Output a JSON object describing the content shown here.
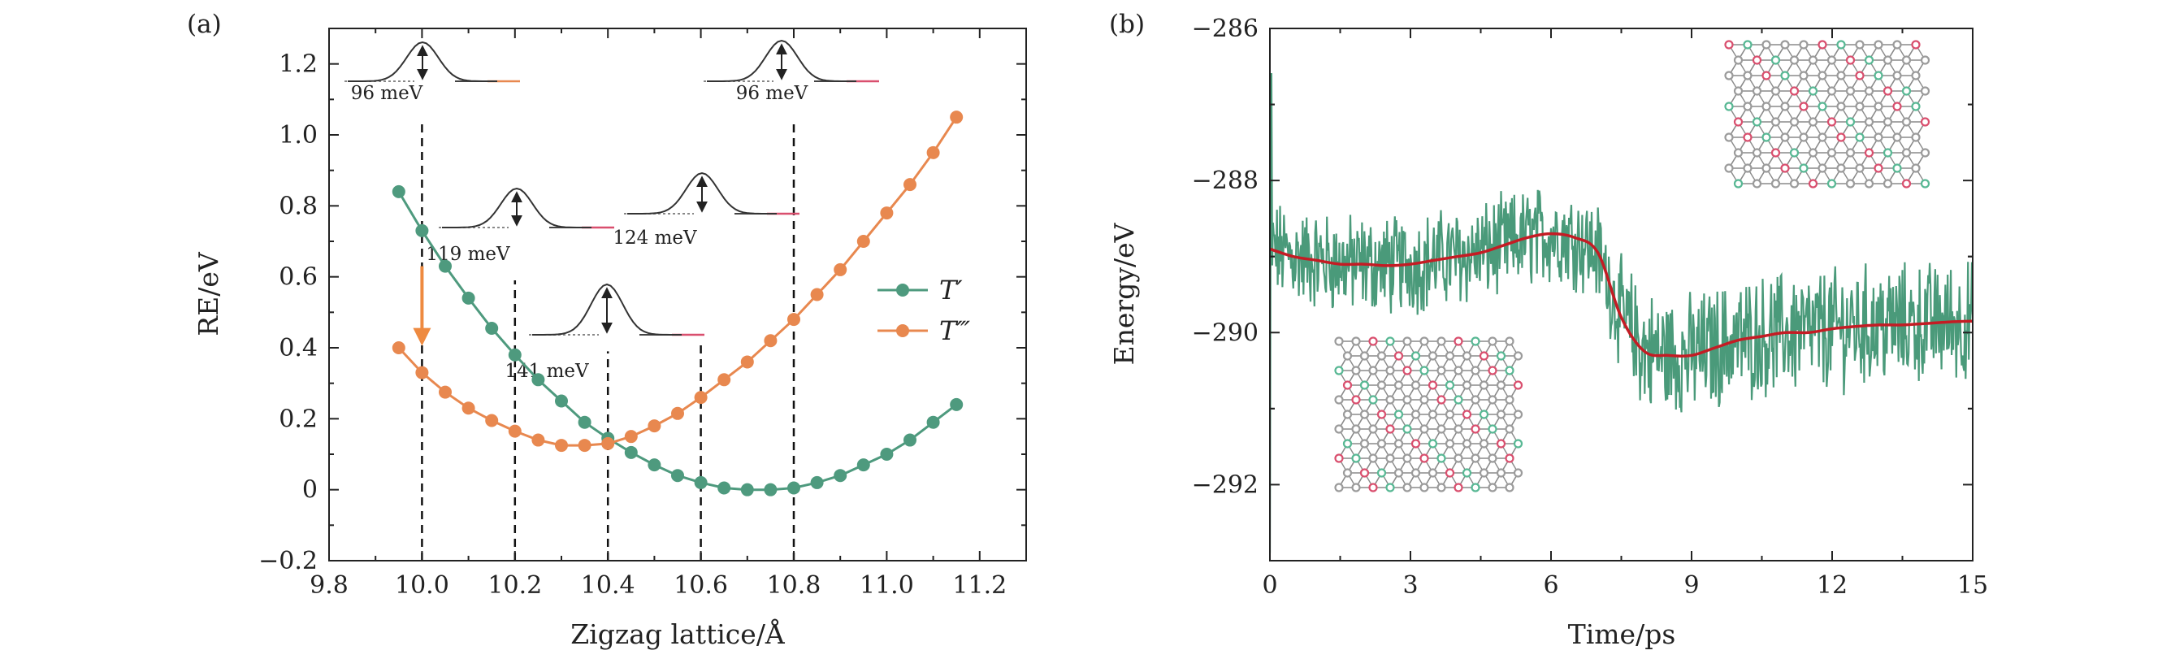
{
  "colors": {
    "t_prime": "#4e9a7e",
    "t_triple_prime": "#e8884f",
    "arrow": "#ee8a40",
    "md_trace": "#4a9a7a",
    "md_fit": "#c41c24",
    "atom_gray": "#9b9b9b",
    "atom_pink": "#d94f6e",
    "atom_green": "#58b894"
  },
  "chart_data": [
    {
      "type": "line",
      "panel_label": "(a)",
      "title": "",
      "xlabel": "Zigzag lattice/Å",
      "ylabel": "RE/eV",
      "xlim": [
        9.8,
        11.3
      ],
      "ylim": [
        -0.2,
        1.3
      ],
      "x_ticks": [
        "9.8",
        "10.0",
        "10.2",
        "10.4",
        "10.6",
        "10.8",
        "11.0",
        "11.2"
      ],
      "y_ticks": [
        "−0.2",
        "0",
        "0.2",
        "0.4",
        "0.6",
        "0.8",
        "1.0",
        "1.2"
      ],
      "grid": false,
      "legend_position": "right",
      "series": [
        {
          "name": "T′",
          "x": [
            9.95,
            10.0,
            10.05,
            10.1,
            10.15,
            10.2,
            10.25,
            10.3,
            10.35,
            10.4,
            10.45,
            10.5,
            10.55,
            10.6,
            10.65,
            10.7,
            10.75,
            10.8,
            10.85,
            10.9,
            10.95,
            11.0,
            11.05,
            11.1,
            11.15
          ],
          "y": [
            0.84,
            0.73,
            0.63,
            0.54,
            0.455,
            0.38,
            0.31,
            0.25,
            0.19,
            0.145,
            0.105,
            0.07,
            0.04,
            0.02,
            0.005,
            0.0,
            0.0,
            0.005,
            0.02,
            0.04,
            0.07,
            0.1,
            0.14,
            0.19,
            0.24
          ]
        },
        {
          "name": "T‴",
          "x": [
            9.95,
            10.0,
            10.05,
            10.1,
            10.15,
            10.2,
            10.25,
            10.3,
            10.35,
            10.4,
            10.45,
            10.5,
            10.55,
            10.6,
            10.65,
            10.7,
            10.75,
            10.8,
            10.85,
            10.9,
            10.95,
            11.0,
            11.05,
            11.1,
            11.15
          ],
          "y": [
            0.4,
            0.33,
            0.275,
            0.23,
            0.195,
            0.165,
            0.14,
            0.125,
            0.125,
            0.13,
            0.15,
            0.18,
            0.215,
            0.26,
            0.31,
            0.36,
            0.42,
            0.48,
            0.55,
            0.62,
            0.7,
            0.78,
            0.86,
            0.95,
            1.05
          ]
        }
      ],
      "vertical_markers_x": [
        10.0,
        10.2,
        10.4,
        10.6,
        10.8
      ],
      "annotations": [
        {
          "text": "96 meV",
          "x": 10.0
        },
        {
          "text": "119 meV",
          "x": 10.2
        },
        {
          "text": "141 meV",
          "x": 10.4
        },
        {
          "text": "124 meV",
          "x": 10.6
        },
        {
          "text": "96 meV",
          "x": 10.8
        }
      ],
      "arrow": {
        "x": 10.0,
        "y_from": 0.63,
        "y_to": 0.41
      }
    },
    {
      "type": "line",
      "panel_label": "(b)",
      "title": "",
      "xlabel": "Time/ps",
      "ylabel": "Energy/eV",
      "xlim": [
        0,
        15
      ],
      "ylim": [
        -293,
        -286
      ],
      "x_ticks": [
        "0",
        "3",
        "6",
        "9",
        "12",
        "15"
      ],
      "y_ticks": [
        "−292",
        "−290",
        "−288",
        "−286"
      ],
      "grid": false,
      "series": [
        {
          "name": "",
          "x": [
            0,
            0.5,
            1,
            1.5,
            2,
            2.5,
            3,
            3.5,
            4,
            4.5,
            5,
            5.5,
            6,
            6.5,
            7,
            7.5,
            8,
            8.5,
            9,
            9.5,
            10,
            10.5,
            11,
            11.5,
            12,
            12.5,
            13,
            13.5,
            14,
            14.5,
            15
          ],
          "y": [
            -288.9,
            -289.0,
            -289.05,
            -289.1,
            -289.1,
            -289.12,
            -289.1,
            -289.05,
            -289.0,
            -288.95,
            -288.85,
            -288.75,
            -288.7,
            -288.75,
            -288.95,
            -289.8,
            -290.25,
            -290.3,
            -290.3,
            -290.2,
            -290.1,
            -290.05,
            -290.0,
            -290.0,
            -289.95,
            -289.92,
            -289.9,
            -289.9,
            -289.88,
            -289.86,
            -289.85
          ]
        }
      ]
    }
  ]
}
